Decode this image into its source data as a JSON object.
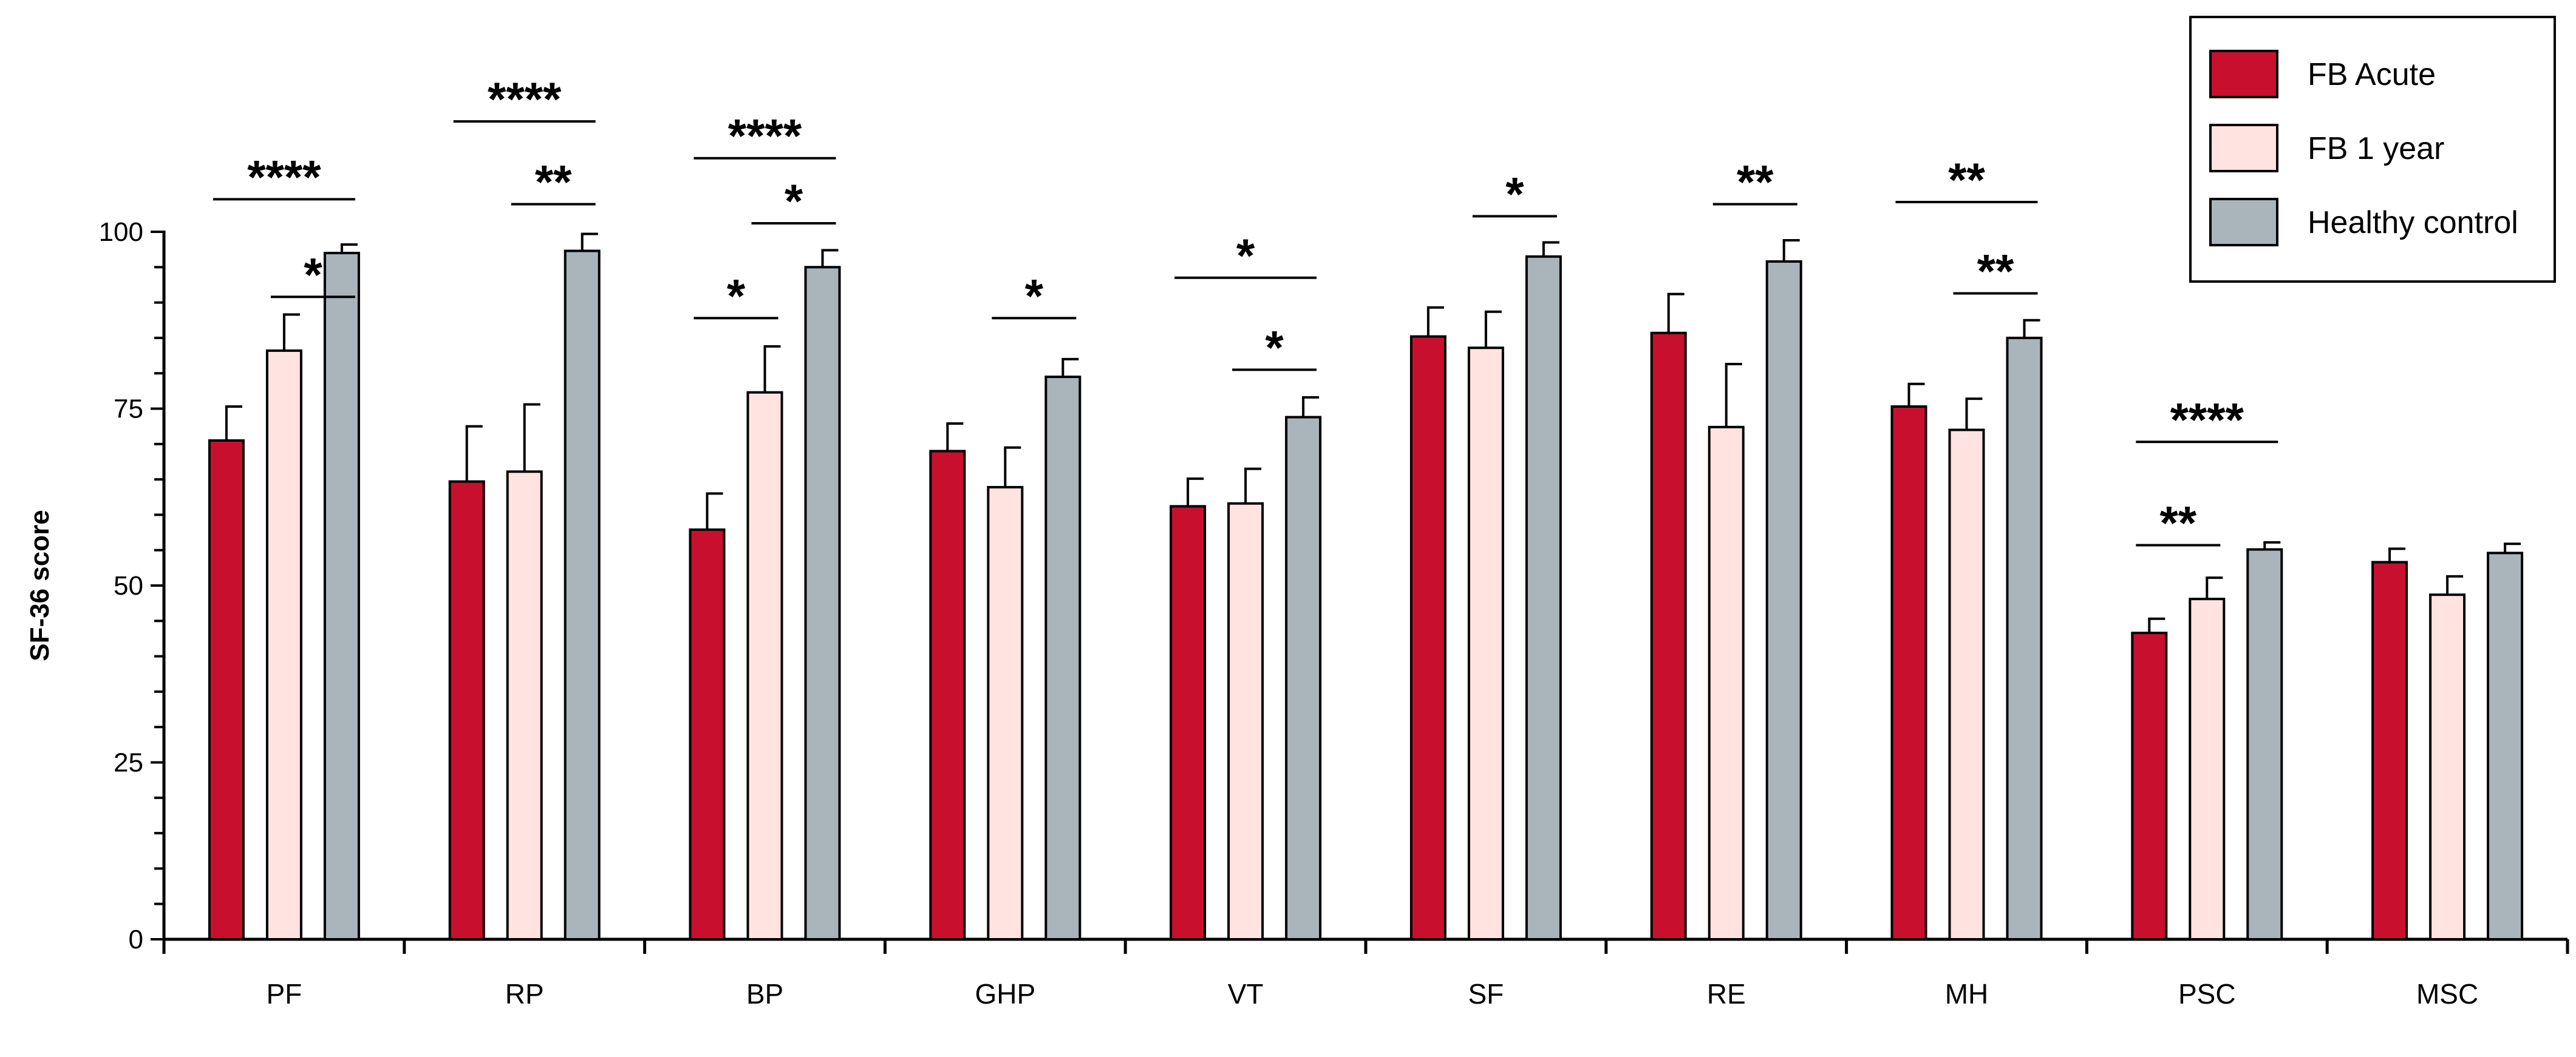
{
  "chart_data": {
    "type": "bar",
    "title": "",
    "xlabel": "",
    "ylabel": "SF-36 score",
    "ylim": [
      0,
      100
    ],
    "yticks": [
      0,
      25,
      50,
      75,
      100
    ],
    "grid": false,
    "legend_position": "top-right",
    "categories": [
      "PF",
      "RP",
      "BP",
      "GHP",
      "VT",
      "SF",
      "RE",
      "MH",
      "PSC",
      "MSC"
    ],
    "series": [
      {
        "name": "FB Acute",
        "color": "#C8102E",
        "values": [
          70.5,
          64.7,
          57.9,
          69.0,
          61.2,
          85.2,
          85.7,
          75.3,
          43.3,
          53.3
        ],
        "errors": [
          4.8,
          7.8,
          5.1,
          3.9,
          3.9,
          4.1,
          5.5,
          3.2,
          2.0,
          1.9
        ]
      },
      {
        "name": "FB 1 year",
        "color": "#FFE3E0",
        "values": [
          83.2,
          66.1,
          77.3,
          63.9,
          61.6,
          83.6,
          72.4,
          72.0,
          48.1,
          48.7
        ],
        "errors": [
          5.1,
          9.5,
          6.5,
          5.6,
          4.9,
          5.1,
          8.9,
          4.4,
          3.0,
          2.6
        ]
      },
      {
        "name": "Healthy control",
        "color": "#A9B4BB",
        "values": [
          97.0,
          97.3,
          95.0,
          79.5,
          73.8,
          96.5,
          95.8,
          85.0,
          55.1,
          54.6
        ],
        "errors": [
          1.2,
          2.4,
          2.4,
          2.5,
          2.8,
          2.0,
          3.0,
          2.5,
          1.0,
          1.3
        ]
      }
    ],
    "significance": [
      {
        "category": "PF",
        "from": 1,
        "to": 2,
        "label": "*",
        "y": 90.8
      },
      {
        "category": "PF",
        "from": 0,
        "to": 2,
        "label": "****",
        "y": 104.6
      },
      {
        "category": "RP",
        "from": 1,
        "to": 2,
        "label": "**",
        "y": 103.9
      },
      {
        "category": "RP",
        "from": 0,
        "to": 2,
        "label": "****",
        "y": 115.6
      },
      {
        "category": "BP",
        "from": 0,
        "to": 1,
        "label": "*",
        "y": 87.8
      },
      {
        "category": "BP",
        "from": 1,
        "to": 2,
        "label": "*",
        "y": 101.2
      },
      {
        "category": "BP",
        "from": 0,
        "to": 2,
        "label": "****",
        "y": 110.4
      },
      {
        "category": "GHP",
        "from": 1,
        "to": 2,
        "label": "*",
        "y": 87.8
      },
      {
        "category": "VT",
        "from": 1,
        "to": 2,
        "label": "*",
        "y": 80.5
      },
      {
        "category": "VT",
        "from": 0,
        "to": 2,
        "label": "*",
        "y": 93.5
      },
      {
        "category": "SF",
        "from": 1,
        "to": 2,
        "label": "*",
        "y": 102.2
      },
      {
        "category": "RE",
        "from": 1,
        "to": 2,
        "label": "**",
        "y": 103.9
      },
      {
        "category": "MH",
        "from": 1,
        "to": 2,
        "label": "**",
        "y": 91.3
      },
      {
        "category": "MH",
        "from": 0,
        "to": 2,
        "label": "**",
        "y": 104.2
      },
      {
        "category": "PSC",
        "from": 0,
        "to": 1,
        "label": "**",
        "y": 55.7
      },
      {
        "category": "PSC",
        "from": 0,
        "to": 2,
        "label": "****",
        "y": 70.3
      }
    ]
  }
}
